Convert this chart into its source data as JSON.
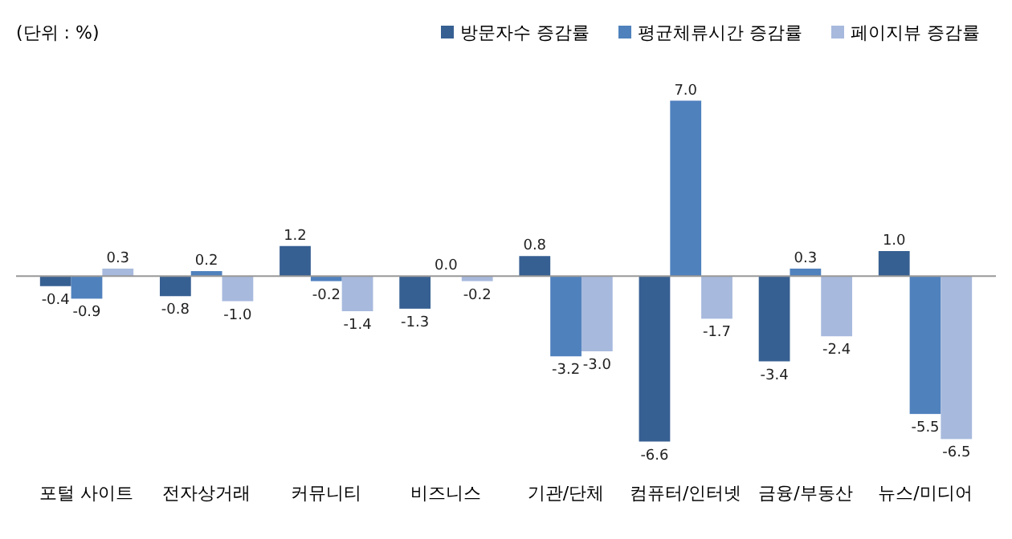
{
  "chart_data": {
    "type": "bar",
    "categories": [
      "포털 사이트",
      "전자상거래",
      "커뮤니티",
      "비즈니스",
      "기관/단체",
      "컴퓨터/인터넷",
      "금융/부동산",
      "뉴스/미디어"
    ],
    "series": [
      {
        "name": "방문자수 증감률",
        "color": "#376092",
        "values": [
          -0.4,
          -0.8,
          1.2,
          -1.3,
          0.8,
          -6.6,
          -3.4,
          1.0
        ],
        "value_labels": [
          "-0.4",
          "-0.8",
          "1.2",
          "-1.3",
          "0.8",
          "-6.6",
          "-3.4",
          "1.0"
        ]
      },
      {
        "name": "평균체류시간 증감률",
        "color": "#4f81bd",
        "values": [
          -0.9,
          0.2,
          -0.2,
          0.0,
          -3.2,
          7.0,
          0.3,
          -5.5
        ],
        "value_labels": [
          "-0.9",
          "0.2",
          "-0.2",
          "0.0",
          "-3.2",
          "7.0",
          "0.3",
          "-5.5"
        ]
      },
      {
        "name": "페이지뷰 증감률",
        "color": "#a7b9dd",
        "values": [
          0.3,
          -1.0,
          -1.4,
          -0.2,
          -3.0,
          -1.7,
          -2.4,
          -6.5
        ],
        "value_labels": [
          "0.3",
          "-1.0",
          "-1.4",
          "-0.2",
          "-3.0",
          "-1.7",
          "-2.4",
          "-6.5"
        ]
      }
    ],
    "legend": "top right",
    "grid": false,
    "annotations": [
      "(단위 : %)"
    ]
  }
}
